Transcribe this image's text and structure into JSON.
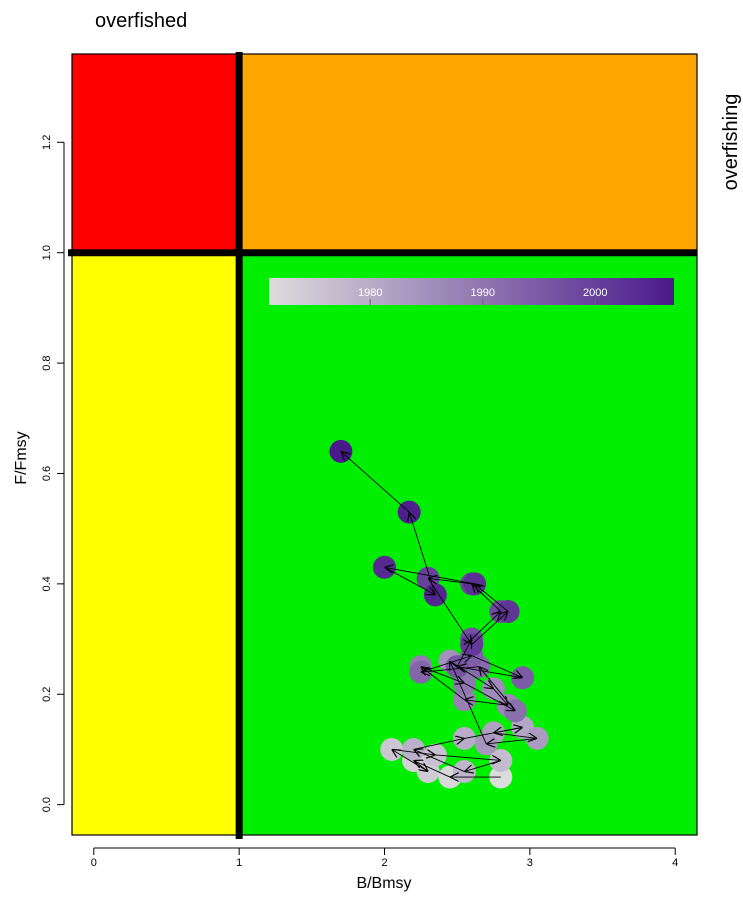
{
  "chart_data": {
    "type": "scatter",
    "title": "",
    "xlabel": "B/Bmsy",
    "ylabel": "F/Fmsy",
    "xlim": [
      -0.15,
      4.15
    ],
    "ylim": [
      -0.055,
      1.36
    ],
    "x_ticks": [
      0,
      1,
      2,
      3,
      4
    ],
    "y_ticks": [
      0.0,
      0.2,
      0.4,
      0.6,
      0.8,
      1.0,
      1.2
    ],
    "x_tick_labels": [
      "0",
      "1",
      "2",
      "3",
      "4"
    ],
    "y_tick_labels": [
      "0.0",
      "0.2",
      "0.4",
      "0.6",
      "0.8",
      "1.0",
      "1.2"
    ],
    "reference_lines": {
      "x": 1,
      "y": 1
    },
    "region_labels": {
      "top": "overfished",
      "right": "overfishing"
    },
    "regions": [
      {
        "name": "overfished-and-overfishing",
        "color": "#ff0000"
      },
      {
        "name": "overfishing-only",
        "color": "#ffa500"
      },
      {
        "name": "overfished-only",
        "color": "#ffff00"
      },
      {
        "name": "healthy",
        "color": "#00ee00"
      }
    ],
    "colorbar": {
      "ticks": [
        1980,
        1990,
        2000
      ],
      "tick_labels": [
        "1980",
        "1990",
        "2000"
      ],
      "range": [
        1971,
        2007
      ],
      "color_low": "#dcdcdc",
      "color_high": "#4b1a8a"
    },
    "series": [
      {
        "points": [
          {
            "year": 1971,
            "x": 2.8,
            "y": 0.05
          },
          {
            "year": 1972,
            "x": 2.45,
            "y": 0.05
          },
          {
            "year": 1973,
            "x": 2.2,
            "y": 0.08
          },
          {
            "year": 1974,
            "x": 2.3,
            "y": 0.06
          },
          {
            "year": 1975,
            "x": 2.05,
            "y": 0.1
          },
          {
            "year": 1976,
            "x": 2.35,
            "y": 0.09
          },
          {
            "year": 1977,
            "x": 2.8,
            "y": 0.08
          },
          {
            "year": 1978,
            "x": 2.55,
            "y": 0.06
          },
          {
            "year": 1979,
            "x": 2.2,
            "y": 0.1
          },
          {
            "year": 1980,
            "x": 2.55,
            "y": 0.12
          },
          {
            "year": 1981,
            "x": 2.95,
            "y": 0.14
          },
          {
            "year": 1982,
            "x": 2.75,
            "y": 0.13
          },
          {
            "year": 1983,
            "x": 3.05,
            "y": 0.12
          },
          {
            "year": 1984,
            "x": 2.7,
            "y": 0.11
          },
          {
            "year": 1985,
            "x": 2.45,
            "y": 0.26
          },
          {
            "year": 1986,
            "x": 2.75,
            "y": 0.21
          },
          {
            "year": 1987,
            "x": 2.85,
            "y": 0.18
          },
          {
            "year": 1988,
            "x": 2.55,
            "y": 0.19
          },
          {
            "year": 1989,
            "x": 2.25,
            "y": 0.25
          },
          {
            "year": 1990,
            "x": 2.55,
            "y": 0.22
          },
          {
            "year": 1991,
            "x": 2.9,
            "y": 0.17
          },
          {
            "year": 1992,
            "x": 2.65,
            "y": 0.25
          },
          {
            "year": 1993,
            "x": 2.25,
            "y": 0.24
          },
          {
            "year": 1994,
            "x": 2.6,
            "y": 0.27
          },
          {
            "year": 1995,
            "x": 2.95,
            "y": 0.23
          },
          {
            "year": 1996,
            "x": 2.5,
            "y": 0.25
          },
          {
            "year": 1997,
            "x": 2.6,
            "y": 0.3
          },
          {
            "year": 1998,
            "x": 2.8,
            "y": 0.35
          },
          {
            "year": 1999,
            "x": 2.6,
            "y": 0.4
          },
          {
            "year": 2000,
            "x": 2.3,
            "y": 0.41
          },
          {
            "year": 2001,
            "x": 2.6,
            "y": 0.29
          },
          {
            "year": 2002,
            "x": 2.85,
            "y": 0.35
          },
          {
            "year": 2003,
            "x": 2.62,
            "y": 0.4
          },
          {
            "year": 2004,
            "x": 2.0,
            "y": 0.43
          },
          {
            "year": 2005,
            "x": 2.35,
            "y": 0.38
          },
          {
            "year": 2006,
            "x": 2.17,
            "y": 0.53
          },
          {
            "year": 2007,
            "x": 1.7,
            "y": 0.64
          }
        ]
      }
    ]
  }
}
